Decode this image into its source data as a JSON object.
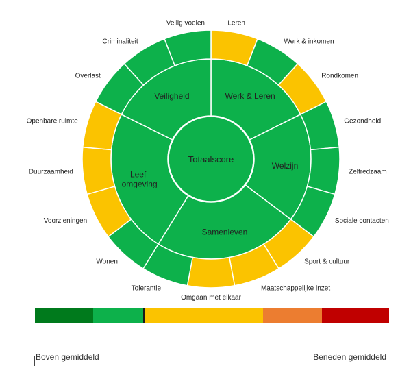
{
  "chart_data": {
    "type": "sunburst",
    "center": "Totaalscore",
    "colors": {
      "above": "#0db14b",
      "average": "#fbc300"
    },
    "categories": [
      {
        "name": "Werk & Leren",
        "items": [
          {
            "label": "Leren",
            "status": "average"
          },
          {
            "label": "Werk & inkomen",
            "status": "above"
          },
          {
            "label": "Rondkomen",
            "status": "average"
          }
        ]
      },
      {
        "name": "Welzijn",
        "items": [
          {
            "label": "Gezondheid",
            "status": "above"
          },
          {
            "label": "Zelfredzaam",
            "status": "above"
          },
          {
            "label": "Sociale contacten",
            "status": "above"
          }
        ]
      },
      {
        "name": "Samenleven",
        "items": [
          {
            "label": "Sport & cultuur",
            "status": "average"
          },
          {
            "label": "Maatschappelijke inzet",
            "status": "average"
          },
          {
            "label": "Omgaan met elkaar",
            "status": "average"
          },
          {
            "label": "Tolerantie",
            "status": "above"
          }
        ]
      },
      {
        "name": "Leef-\nomgeving",
        "items": [
          {
            "label": "Wonen",
            "status": "above"
          },
          {
            "label": "Voorzieningen",
            "status": "average"
          },
          {
            "label": "Duurzaamheid",
            "status": "average"
          },
          {
            "label": "Openbare ruimte",
            "status": "average"
          }
        ]
      },
      {
        "name": "Veiligheid",
        "items": [
          {
            "label": "Overlast",
            "status": "above"
          },
          {
            "label": "Criminaliteit",
            "status": "above"
          },
          {
            "label": "Veilig voelen",
            "status": "above"
          }
        ]
      }
    ],
    "legend": {
      "left_label": "Boven gemiddeld",
      "right_label": "Beneden gemiddeld",
      "segments": [
        {
          "color": "#007a1c",
          "share": 0.165
        },
        {
          "color": "#0db14b",
          "share": 0.145
        },
        {
          "color": "#fbc300",
          "share": 0.335
        },
        {
          "color": "#ec7d30",
          "share": 0.165
        },
        {
          "color": "#c00000",
          "share": 0.19
        }
      ],
      "marker_value": 0.31
    }
  }
}
